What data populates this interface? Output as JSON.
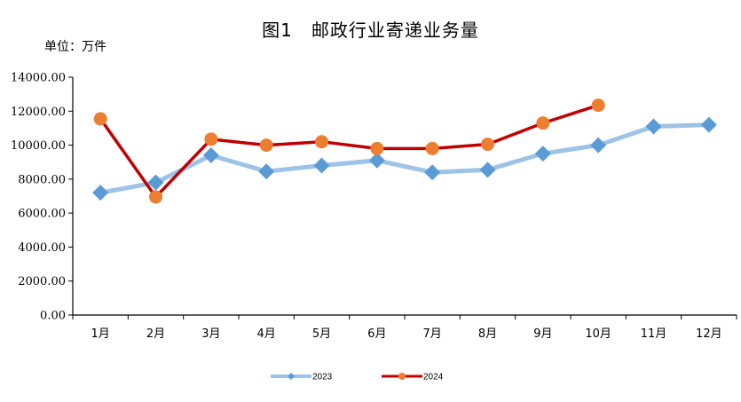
{
  "chart_data": {
    "type": "line",
    "title": "图1　邮政行业寄递业务量",
    "unit_label": "单位：万件",
    "categories": [
      "1月",
      "2月",
      "3月",
      "4月",
      "5月",
      "6月",
      "7月",
      "8月",
      "9月",
      "10月",
      "11月",
      "12月"
    ],
    "ylim": [
      0,
      14000
    ],
    "yticks": [
      "0.00",
      "2000.00",
      "4000.00",
      "6000.00",
      "8000.00",
      "10000.00",
      "12000.00",
      "14000.00"
    ],
    "grid": false,
    "legend_position": "bottom",
    "series": [
      {
        "name": "2023",
        "color": "#9dc3e6",
        "marker_color": "#5b9bd5",
        "marker": "diamond",
        "values": [
          7200,
          7800,
          9400,
          8450,
          8800,
          9100,
          8400,
          8550,
          9500,
          10000,
          11100,
          11200
        ]
      },
      {
        "name": "2024",
        "color": "#c00000",
        "marker_color": "#ed7d31",
        "marker": "circle",
        "values": [
          11550,
          6950,
          10350,
          10000,
          10200,
          9800,
          9800,
          10050,
          11300,
          12350,
          null,
          null
        ]
      }
    ]
  }
}
